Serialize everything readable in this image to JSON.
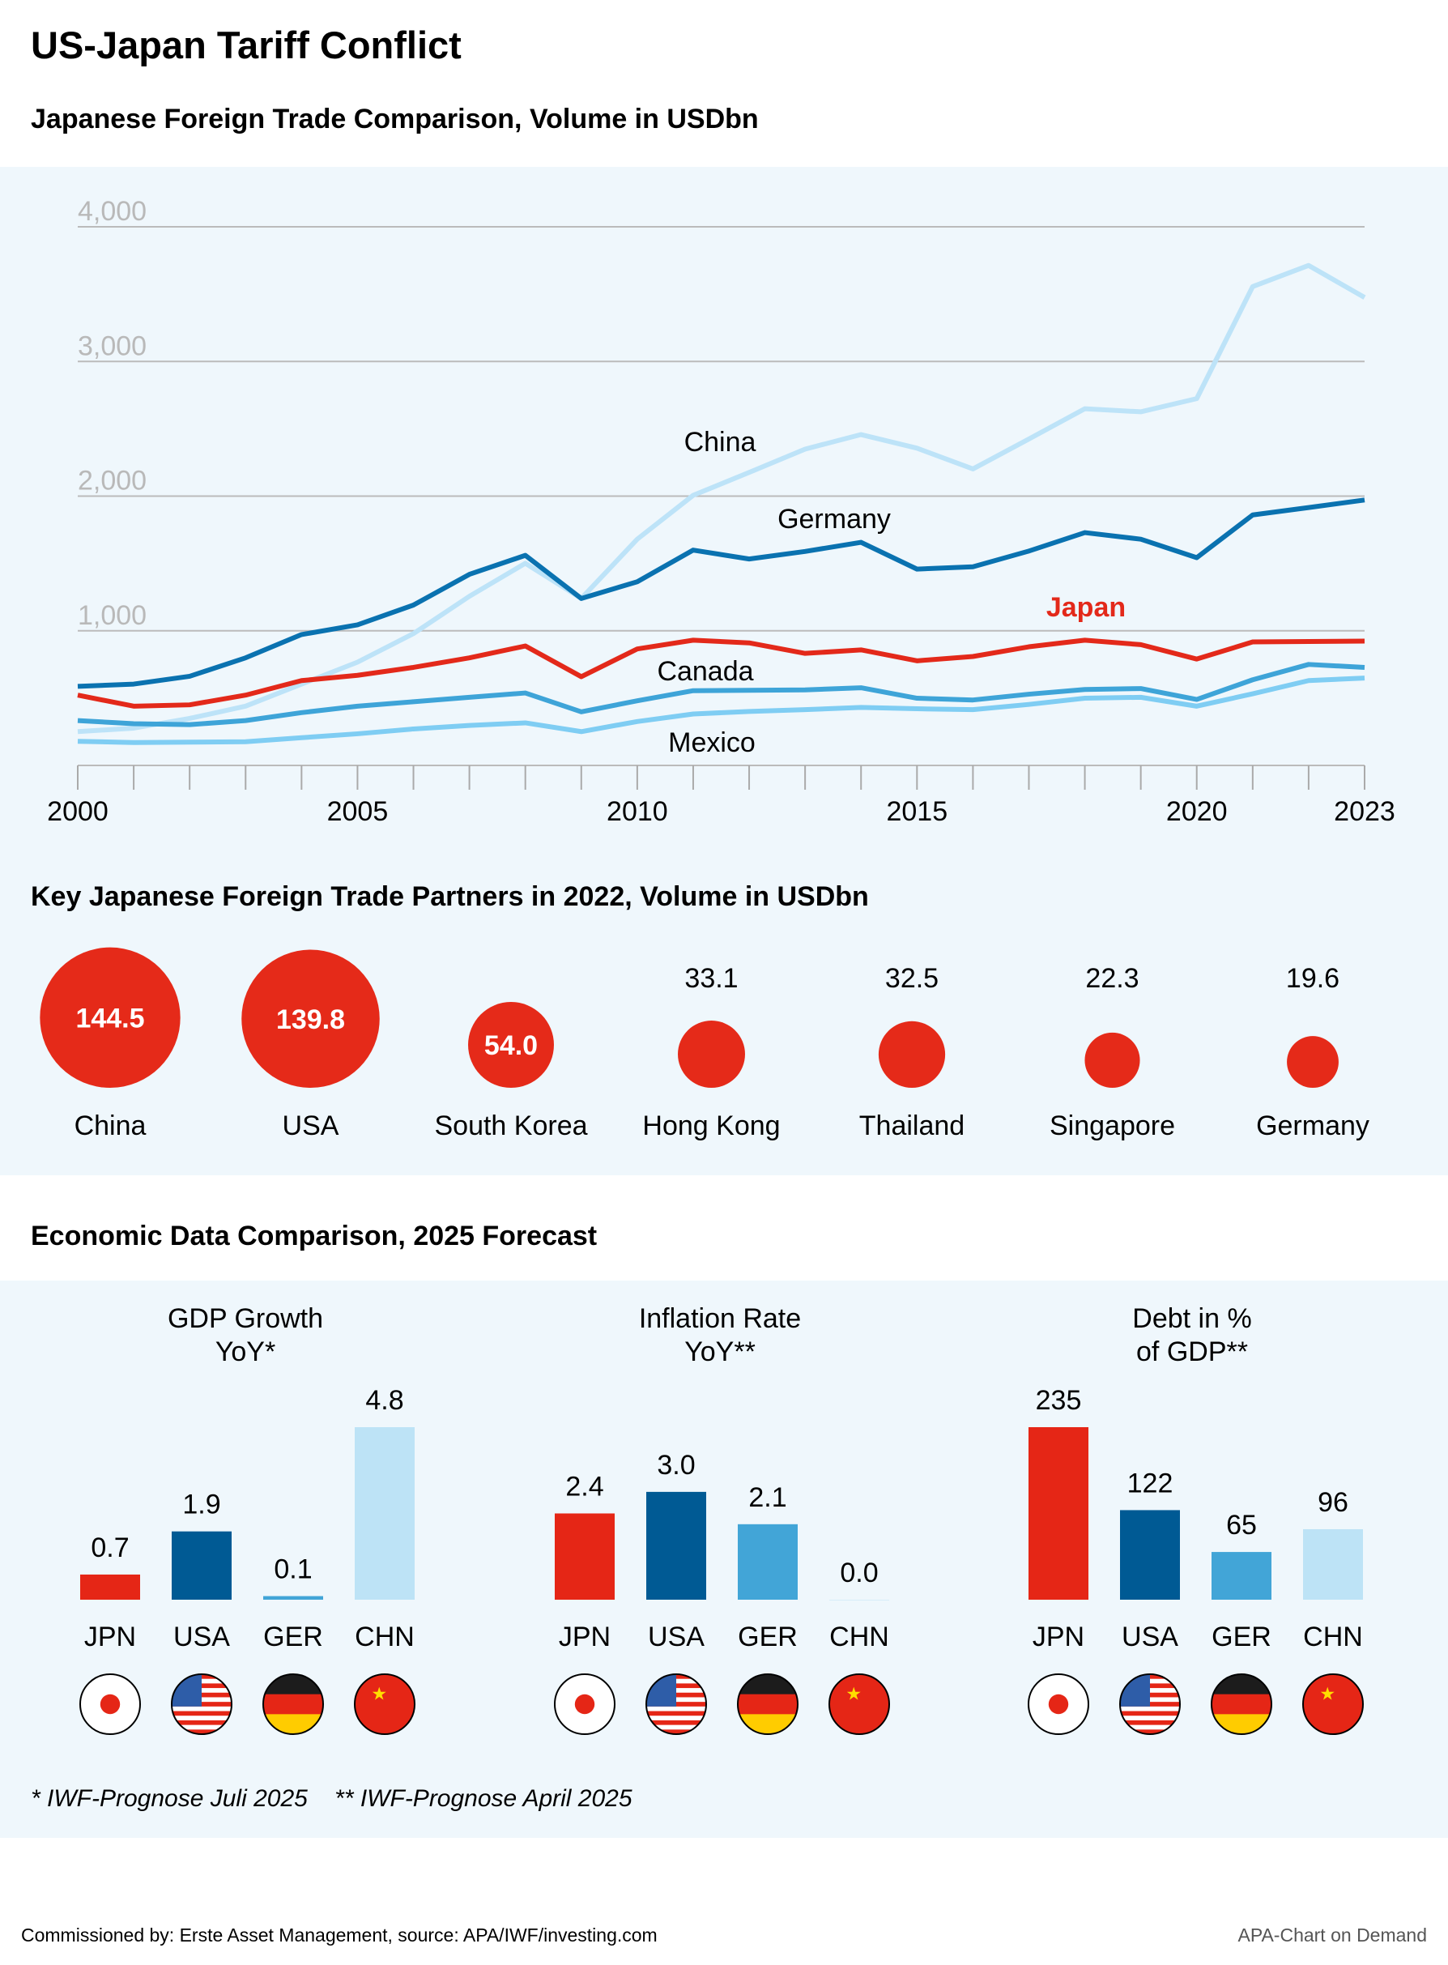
{
  "title": "US-Japan Tariff Conflict",
  "colors": {
    "japan": "#e3291a",
    "usa": "#005a94",
    "germany": "#0a72b0",
    "china": "#bde3f8",
    "canada": "#3ea4d8",
    "mexico": "#7fcdf3",
    "ger_bar": "#42a5d7",
    "panel_bg": "#eff7fc",
    "grid": "#b9b9b9"
  },
  "chart_data": [
    {
      "type": "line",
      "title": "Japanese Foreign Trade Comparison, Volume in USDbn",
      "x": [
        2000,
        2001,
        2002,
        2003,
        2004,
        2005,
        2006,
        2007,
        2008,
        2009,
        2010,
        2011,
        2012,
        2013,
        2014,
        2015,
        2016,
        2017,
        2018,
        2019,
        2020,
        2021,
        2022,
        2023
      ],
      "xticks": [
        "2000",
        "2005",
        "2010",
        "2015",
        "2020",
        "2023"
      ],
      "yticks": [
        "1,000",
        "2,000",
        "3,000",
        "4,000"
      ],
      "ylim": [
        0,
        4000
      ],
      "grid": true,
      "series": [
        {
          "name": "China",
          "color": "#bde3f8",
          "values": [
            251,
            277,
            349,
            440,
            604,
            767,
            979,
            1256,
            1501,
            1240,
            1680,
            2006,
            2176,
            2349,
            2457,
            2356,
            2202,
            2424,
            2649,
            2626,
            2724,
            3556,
            3713,
            3475
          ]
        },
        {
          "name": "Mexico",
          "color": "#7fcdf3",
          "values": [
            179,
            170,
            173,
            176,
            206,
            235,
            271,
            297,
            316,
            251,
            326,
            382,
            401,
            414,
            431,
            421,
            414,
            453,
            499,
            506,
            440,
            532,
            630,
            649
          ]
        },
        {
          "name": "Canada",
          "color": "#3ea4d8",
          "values": [
            333,
            310,
            303,
            333,
            392,
            440,
            473,
            506,
            538,
            398,
            480,
            555,
            558,
            561,
            577,
            499,
            486,
            529,
            564,
            571,
            490,
            636,
            750,
            728
          ]
        },
        {
          "name": "Germany",
          "color": "#0a72b0",
          "values": [
            587,
            604,
            662,
            799,
            972,
            1044,
            1191,
            1419,
            1560,
            1240,
            1364,
            1599,
            1533,
            1589,
            1657,
            1458,
            1475,
            1592,
            1729,
            1680,
            1543,
            1860,
            1915,
            1971
          ]
        },
        {
          "name": "Japan",
          "color": "#e3291a",
          "values": [
            522,
            440,
            450,
            522,
            630,
            669,
            728,
            799,
            887,
            659,
            865,
            930,
            910,
            832,
            858,
            777,
            809,
            881,
            930,
            897,
            790,
            917,
            920,
            923
          ]
        }
      ]
    },
    {
      "type": "bubble",
      "title": "Key Japanese Foreign Trade Partners in 2022, Volume in USDbn",
      "color": "#e52a19",
      "categories": [
        "China",
        "USA",
        "South Korea",
        "Hong Kong",
        "Thailand",
        "Singapore",
        "Germany"
      ],
      "values": [
        144.5,
        139.8,
        54.0,
        33.1,
        32.5,
        22.3,
        19.6
      ],
      "labels": [
        "144.5",
        "139.8",
        "54.0",
        "33.1",
        "32.5",
        "22.3",
        "19.6"
      ]
    },
    {
      "type": "bar",
      "section_title": "Economic Data Comparison, 2025 Forecast",
      "groups": [
        {
          "title": [
            "GDP Growth",
            "YoY*"
          ],
          "categories": [
            "JPN",
            "USA",
            "GER",
            "CHN"
          ],
          "values": [
            0.7,
            1.9,
            0.1,
            4.8
          ],
          "labels": [
            "0.7",
            "1.9",
            "0.1",
            "4.8"
          ],
          "ylim": [
            0,
            4.8
          ]
        },
        {
          "title": [
            "Inflation Rate",
            "YoY**"
          ],
          "categories": [
            "JPN",
            "USA",
            "GER",
            "CHN"
          ],
          "values": [
            2.4,
            3.0,
            2.1,
            0.0
          ],
          "labels": [
            "2.4",
            "3.0",
            "2.1",
            "0.0"
          ],
          "ylim": [
            0,
            4.8
          ]
        },
        {
          "title": [
            "Debt in %",
            "of GDP**"
          ],
          "categories": [
            "JPN",
            "USA",
            "GER",
            "CHN"
          ],
          "values": [
            235,
            122,
            65,
            96
          ],
          "labels": [
            "235",
            "122",
            "65",
            "96"
          ],
          "ylim": [
            0,
            235
          ]
        }
      ],
      "bar_colors": [
        "#e52616",
        "#005a94",
        "#42a5d7",
        "#bde3f6"
      ],
      "flags": [
        "japan-flag-icon",
        "usa-flag-icon",
        "germany-flag-icon",
        "china-flag-icon"
      ]
    }
  ],
  "footnote": "* IWF-Prognose Juli 2025    ** IWF-Prognose April 2025",
  "footer": {
    "source": "Commissioned by: Erste Asset Management, source: APA/IWF/investing.com",
    "credit": "APA-Chart on Demand"
  }
}
